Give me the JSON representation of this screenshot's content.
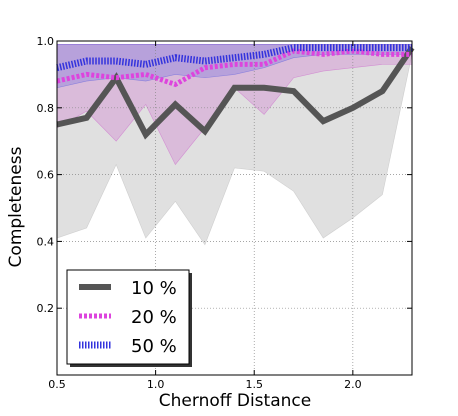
{
  "chart_data": {
    "type": "line",
    "title": "",
    "xlabel": "Chernoff Distance",
    "ylabel": "Completeness",
    "xlim": [
      0.5,
      2.3
    ],
    "ylim": [
      0.0,
      1.0
    ],
    "xticks": [
      0.5,
      1.0,
      1.5,
      2.0
    ],
    "xtick_labels": [
      "0.5",
      "1.0",
      "1.5",
      "2.0"
    ],
    "yticks": [
      0.2,
      0.4,
      0.6,
      0.8,
      1.0
    ],
    "ytick_labels": [
      "0.2",
      "0.4",
      "0.6",
      "0.8",
      "1.0"
    ],
    "grid": true,
    "legend_position": "bottom-left",
    "x": [
      0.5,
      0.65,
      0.8,
      0.95,
      1.1,
      1.25,
      1.4,
      1.55,
      1.7,
      1.85,
      2.0,
      2.15,
      2.3
    ],
    "series": [
      {
        "name": "10 %",
        "color": "#555555",
        "style": "solid-thick",
        "values": [
          0.75,
          0.77,
          0.89,
          0.72,
          0.81,
          0.73,
          0.86,
          0.86,
          0.85,
          0.76,
          0.8,
          0.85,
          0.98
        ],
        "band_low": [
          0.41,
          0.44,
          0.63,
          0.41,
          0.52,
          0.39,
          0.62,
          0.61,
          0.55,
          0.41,
          0.47,
          0.54,
          0.96
        ],
        "band_high": [
          0.99,
          0.99,
          0.99,
          0.99,
          0.99,
          0.99,
          0.99,
          0.99,
          0.99,
          0.99,
          0.99,
          0.99,
          0.99
        ],
        "band_color": "#bbbbbb"
      },
      {
        "name": "20 %",
        "color": "#dd44dd",
        "style": "dotted-thick",
        "values": [
          0.88,
          0.9,
          0.89,
          0.9,
          0.87,
          0.92,
          0.93,
          0.93,
          0.97,
          0.96,
          0.97,
          0.96,
          0.96
        ],
        "band_low": [
          0.74,
          0.79,
          0.7,
          0.81,
          0.63,
          0.74,
          0.86,
          0.78,
          0.89,
          0.91,
          0.92,
          0.93,
          0.93
        ],
        "band_high": [
          0.99,
          0.99,
          0.99,
          0.99,
          0.99,
          0.99,
          0.99,
          0.99,
          0.99,
          0.99,
          0.99,
          0.99,
          0.99
        ],
        "band_color": "#cc66cc"
      },
      {
        "name": "50 %",
        "color": "#3333dd",
        "style": "hatched-thick",
        "values": [
          0.92,
          0.94,
          0.94,
          0.93,
          0.95,
          0.94,
          0.95,
          0.96,
          0.98,
          0.98,
          0.98,
          0.98,
          0.98
        ],
        "band_low": [
          0.86,
          0.88,
          0.89,
          0.88,
          0.9,
          0.89,
          0.9,
          0.92,
          0.95,
          0.96,
          0.96,
          0.96,
          0.96
        ],
        "band_high": [
          0.99,
          0.99,
          0.99,
          0.99,
          0.99,
          0.99,
          0.99,
          0.99,
          0.99,
          0.99,
          0.99,
          0.99,
          0.99
        ],
        "band_color": "#6666dd"
      }
    ]
  }
}
